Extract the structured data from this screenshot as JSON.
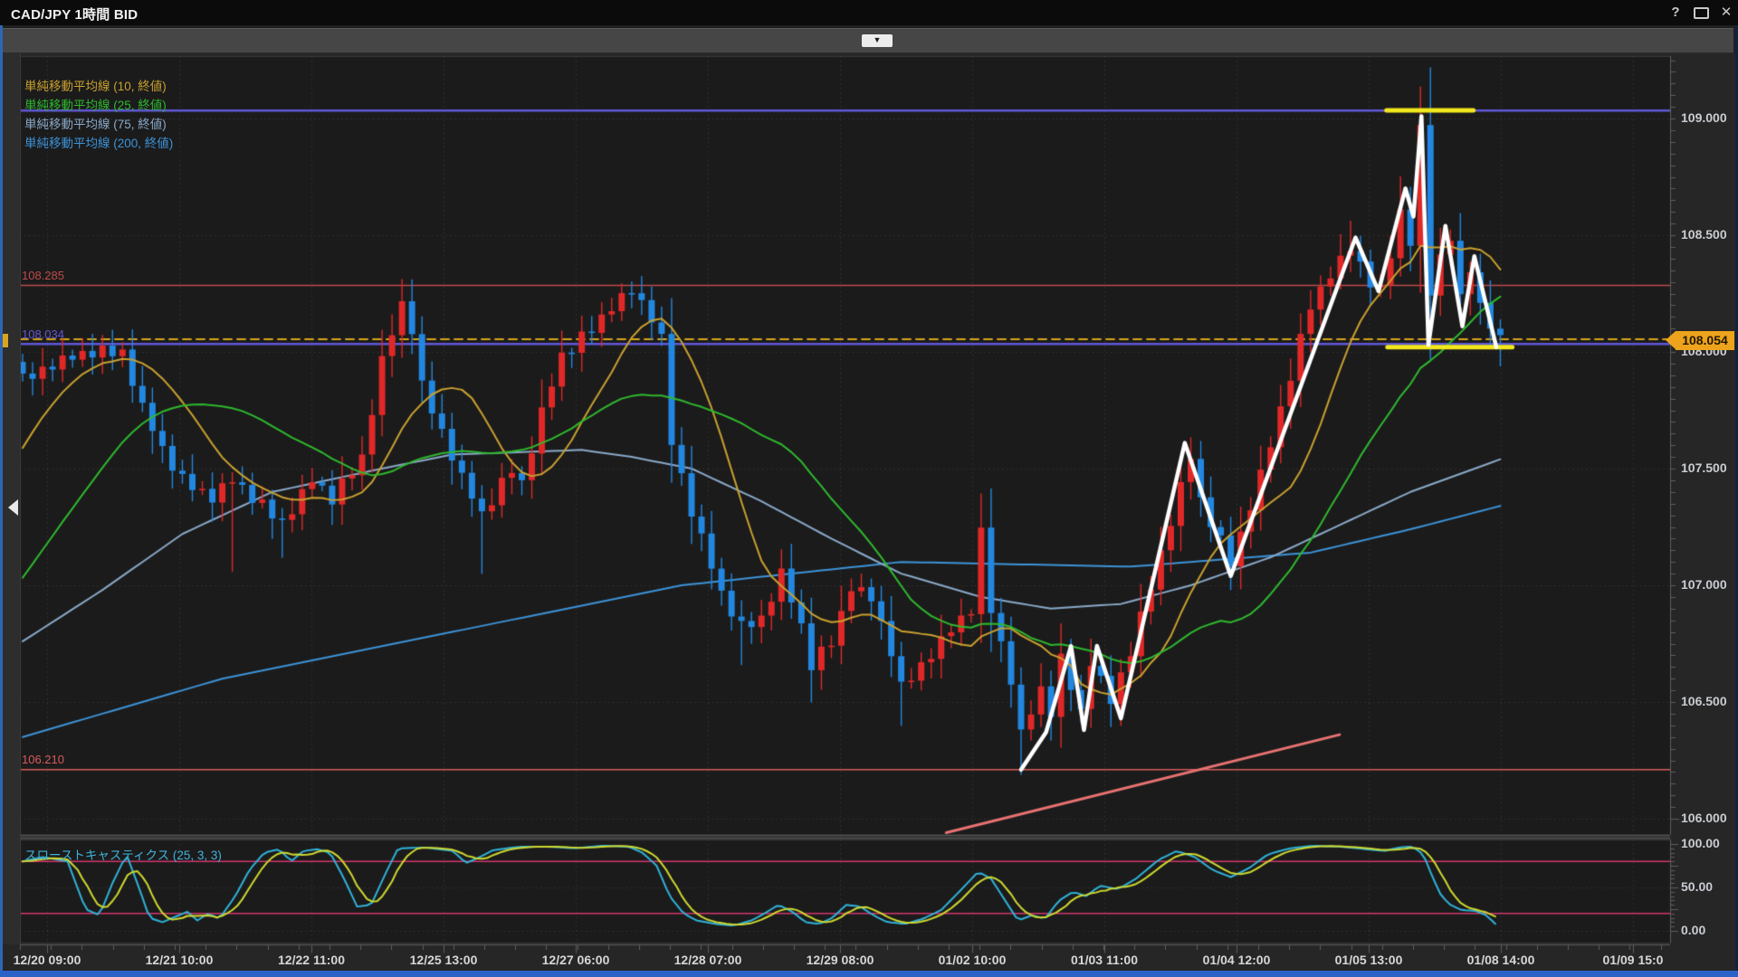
{
  "window": {
    "title": "CAD/JPY 1時間 BID",
    "controls": {
      "help": "?",
      "close": "✕"
    }
  },
  "toolbar": {
    "collapse_icon": "▼"
  },
  "chart_data": {
    "type": "candlestick",
    "title": "CAD/JPY 1時間 BID",
    "instrument": "CAD/JPY",
    "timeframe": "1時間",
    "quote_side": "BID",
    "up_color": "#e02828",
    "down_color": "#2287e0",
    "background": "#1b1b1b",
    "y_axis": {
      "tick_labels": [
        "109.000",
        "108.500",
        "108.000",
        "107.500",
        "107.000",
        "106.500",
        "106.000"
      ],
      "tick_values": [
        109.0,
        108.5,
        108.0,
        107.5,
        107.0,
        106.5,
        106.0
      ],
      "visible_range": [
        105.93,
        109.27
      ]
    },
    "x_labels": [
      "12/20 09:00",
      "12/21 10:00",
      "12/22 11:00",
      "12/25 13:00",
      "12/27 06:00",
      "12/28 07:00",
      "12/29 08:00",
      "01/02 10:00",
      "01/03 11:00",
      "01/04 12:00",
      "01/05 13:00",
      "01/08 14:00",
      "01/09 15:0"
    ],
    "price_path_keyframes": [
      [
        0,
        107.88
      ],
      [
        3,
        107.95
      ],
      [
        7,
        108.0
      ],
      [
        10,
        108.0
      ],
      [
        12,
        107.76
      ],
      [
        14,
        107.58
      ],
      [
        16,
        107.45
      ],
      [
        19,
        107.38
      ],
      [
        21,
        107.45
      ],
      [
        24,
        107.34
      ],
      [
        26,
        107.27
      ],
      [
        29,
        107.45
      ],
      [
        31,
        107.37
      ],
      [
        34,
        107.55
      ],
      [
        36,
        107.96
      ],
      [
        38,
        108.2
      ],
      [
        39,
        108.1
      ],
      [
        40,
        107.85
      ],
      [
        42,
        107.66
      ],
      [
        44,
        107.46
      ],
      [
        46,
        107.3
      ],
      [
        49,
        107.5
      ],
      [
        50,
        107.44
      ],
      [
        52,
        107.74
      ],
      [
        54,
        107.98
      ],
      [
        57,
        108.1
      ],
      [
        59,
        108.2
      ],
      [
        61,
        108.26
      ],
      [
        63,
        108.15
      ],
      [
        64,
        108.05
      ],
      [
        65,
        107.62
      ],
      [
        67,
        107.32
      ],
      [
        68,
        107.2
      ],
      [
        70,
        106.96
      ],
      [
        72,
        106.82
      ],
      [
        74,
        106.86
      ],
      [
        76,
        107.05
      ],
      [
        78,
        106.82
      ],
      [
        79,
        106.66
      ],
      [
        81,
        106.76
      ],
      [
        83,
        107.0
      ],
      [
        85,
        106.94
      ],
      [
        87,
        106.72
      ],
      [
        88,
        106.56
      ],
      [
        90,
        106.66
      ],
      [
        92,
        106.76
      ],
      [
        95,
        106.9
      ],
      [
        96,
        107.22
      ],
      [
        97,
        106.9
      ],
      [
        99,
        106.6
      ],
      [
        100,
        106.36
      ],
      [
        102,
        106.55
      ],
      [
        103,
        106.46
      ],
      [
        104,
        106.68
      ],
      [
        106,
        106.46
      ],
      [
        107,
        106.68
      ],
      [
        109,
        106.5
      ],
      [
        111,
        106.72
      ],
      [
        113,
        107.0
      ],
      [
        116,
        107.42
      ],
      [
        117,
        107.55
      ],
      [
        118,
        107.36
      ],
      [
        121,
        107.1
      ],
      [
        122,
        107.22
      ],
      [
        125,
        107.6
      ],
      [
        127,
        107.9
      ],
      [
        129,
        108.2
      ],
      [
        131,
        108.34
      ],
      [
        133,
        108.44
      ],
      [
        135,
        108.3
      ],
      [
        136,
        108.26
      ],
      [
        137,
        108.42
      ],
      [
        138,
        108.6
      ],
      [
        139,
        108.48
      ],
      [
        140,
        108.95
      ],
      [
        141,
        108.25
      ],
      [
        142,
        108.4
      ],
      [
        143,
        108.5
      ],
      [
        144,
        108.22
      ],
      [
        145,
        108.36
      ],
      [
        146,
        108.2
      ],
      [
        148,
        108.05
      ]
    ],
    "wick_events": [
      [
        10,
        "h",
        108.04
      ],
      [
        21,
        "l",
        107.06
      ],
      [
        26,
        "l",
        107.12
      ],
      [
        38,
        "h",
        108.31
      ],
      [
        46,
        "l",
        107.05
      ],
      [
        61,
        "h",
        108.3
      ],
      [
        72,
        "l",
        106.66
      ],
      [
        79,
        "l",
        106.5
      ],
      [
        88,
        "l",
        106.4
      ],
      [
        96,
        "h",
        107.32
      ],
      [
        100,
        "l",
        106.19
      ],
      [
        133,
        "h",
        108.56
      ],
      [
        138,
        "h",
        108.75
      ],
      [
        140,
        "h",
        109.02
      ],
      [
        141,
        "l",
        107.97
      ],
      [
        148,
        "l",
        107.94
      ]
    ],
    "overlays": [
      {
        "label": "単純移動平均線 (10, 終値)",
        "period": 10,
        "color": "#c9a02f",
        "computed": true
      },
      {
        "label": "単純移動平均線 (25, 終値)",
        "period": 25,
        "color": "#2eb82e",
        "computed": true
      },
      {
        "label": "単純移動平均線 (75, 終値)",
        "period": 75,
        "color": "#8aa9c9",
        "computed": false
      },
      {
        "label": "単純移動平均線 (200, 終値)",
        "period": 200,
        "color": "#3d93d8",
        "computed": false
      }
    ],
    "ma75_keyframes": [
      [
        0,
        106.76
      ],
      [
        8,
        106.98
      ],
      [
        16,
        107.22
      ],
      [
        25,
        107.4
      ],
      [
        36,
        107.5
      ],
      [
        43,
        107.56
      ],
      [
        56,
        107.58
      ],
      [
        61,
        107.55
      ],
      [
        67,
        107.5
      ],
      [
        74,
        107.36
      ],
      [
        81,
        107.2
      ],
      [
        88,
        107.05
      ],
      [
        96,
        106.95
      ],
      [
        103,
        106.9
      ],
      [
        110,
        106.92
      ],
      [
        117,
        107.0
      ],
      [
        125,
        107.12
      ],
      [
        132,
        107.26
      ],
      [
        139,
        107.4
      ],
      [
        148,
        107.54
      ]
    ],
    "ma200_keyframes": [
      [
        0,
        106.35
      ],
      [
        20,
        106.6
      ],
      [
        43,
        106.8
      ],
      [
        66,
        107.0
      ],
      [
        88,
        107.1
      ],
      [
        111,
        107.08
      ],
      [
        129,
        107.14
      ],
      [
        139,
        107.24
      ],
      [
        148,
        107.34
      ]
    ],
    "horizontal_lines": [
      {
        "label": "108.285",
        "value": 108.285,
        "color": "#bf4a4a",
        "style": "solid"
      },
      {
        "label": "108.034",
        "value": 108.034,
        "color": "#6157d8",
        "style": "solid"
      },
      {
        "label": "",
        "value": 109.034,
        "color": "#6157d8",
        "style": "solid"
      },
      {
        "label": "106.210",
        "value": 106.21,
        "color": "#d85b5b",
        "style": "solid"
      }
    ],
    "current_price": {
      "label": "108.054",
      "value": 108.054,
      "line_color": "#d9a51d",
      "tag_color": "#eda41c",
      "style": "dashed"
    },
    "trend_line": {
      "color": "#e87272",
      "points": [
        [
          92.5,
          105.94
        ],
        [
          131.9,
          106.36
        ]
      ]
    },
    "drawn_zigzag": {
      "color": "#ffffff",
      "points": [
        [
          100,
          106.21
        ],
        [
          102.5,
          106.37
        ],
        [
          105,
          106.74
        ],
        [
          106.3,
          106.38
        ],
        [
          107.6,
          106.74
        ],
        [
          110,
          106.43
        ],
        [
          116.4,
          107.61
        ],
        [
          121,
          107.04
        ],
        [
          133.5,
          108.49
        ],
        [
          135.8,
          108.26
        ],
        [
          138.5,
          108.7
        ],
        [
          139.3,
          108.58
        ],
        [
          140.1,
          109.01
        ],
        [
          140.8,
          108.03
        ],
        [
          142.5,
          108.54
        ],
        [
          144.2,
          108.11
        ],
        [
          145.4,
          108.41
        ],
        [
          147.6,
          108.02
        ]
      ]
    },
    "yellow_segments": [
      {
        "price": 109.035,
        "from_index": 136.6,
        "to_index": 145.3,
        "color": "#f2e71c"
      },
      {
        "price": 108.02,
        "from_index": 136.7,
        "to_index": 149.2,
        "color": "#f2e71c"
      }
    ],
    "stochastic": {
      "label": "スローストキャスティクス (25, 3, 3)",
      "params": [
        25,
        3,
        3
      ],
      "axis_labels": [
        "100.00",
        "50.00",
        "0.00"
      ],
      "axis_values": [
        100,
        50,
        0
      ],
      "levels": [
        80,
        20
      ],
      "level_color": "#d4356e",
      "k_color": "#2fb3d9",
      "d_color": "#cfd92f",
      "k_keyframes": [
        [
          0,
          80
        ],
        [
          2,
          85
        ],
        [
          4.5,
          80
        ],
        [
          6.3,
          25
        ],
        [
          7.7,
          18
        ],
        [
          9,
          55
        ],
        [
          10.4,
          88
        ],
        [
          11.8,
          45
        ],
        [
          12.7,
          15
        ],
        [
          14,
          10
        ],
        [
          16.5,
          22
        ],
        [
          17.5,
          12
        ],
        [
          18.6,
          20
        ],
        [
          19.7,
          14
        ],
        [
          21.3,
          40
        ],
        [
          22.7,
          70
        ],
        [
          24.2,
          90
        ],
        [
          25.7,
          94
        ],
        [
          26.9,
          80
        ],
        [
          28.1,
          92
        ],
        [
          29.5,
          94
        ],
        [
          30.8,
          90
        ],
        [
          32.2,
          60
        ],
        [
          33.5,
          28
        ],
        [
          34.9,
          30
        ],
        [
          36.3,
          65
        ],
        [
          37.6,
          95
        ],
        [
          40.3,
          96
        ],
        [
          43.1,
          92
        ],
        [
          44.4,
          78
        ],
        [
          45.8,
          85
        ],
        [
          47.1,
          93
        ],
        [
          49.9,
          97
        ],
        [
          52.6,
          97
        ],
        [
          55.3,
          95
        ],
        [
          58,
          98
        ],
        [
          60.7,
          97
        ],
        [
          62.1,
          90
        ],
        [
          63.5,
          75
        ],
        [
          64.8,
          40
        ],
        [
          66.2,
          20
        ],
        [
          67.5,
          12
        ],
        [
          69.4,
          8
        ],
        [
          71.2,
          6
        ],
        [
          73,
          12
        ],
        [
          74.3,
          20
        ],
        [
          75.7,
          30
        ],
        [
          77.1,
          22
        ],
        [
          78.4,
          10
        ],
        [
          79.8,
          8
        ],
        [
          81.1,
          15
        ],
        [
          82.5,
          30
        ],
        [
          83.9,
          28
        ],
        [
          85.2,
          18
        ],
        [
          86.6,
          10
        ],
        [
          88.4,
          8
        ],
        [
          90.2,
          14
        ],
        [
          92,
          24
        ],
        [
          93.8,
          45
        ],
        [
          95.7,
          68
        ],
        [
          97,
          60
        ],
        [
          98.4,
          35
        ],
        [
          99.7,
          12
        ],
        [
          101.1,
          18
        ],
        [
          102.4,
          14
        ],
        [
          103.8,
          35
        ],
        [
          105.2,
          45
        ],
        [
          106.5,
          40
        ],
        [
          107.9,
          52
        ],
        [
          109.7,
          48
        ],
        [
          111.5,
          60
        ],
        [
          113.8,
          82
        ],
        [
          115.6,
          92
        ],
        [
          117.4,
          85
        ],
        [
          119.2,
          70
        ],
        [
          121,
          62
        ],
        [
          122.8,
          72
        ],
        [
          124.7,
          88
        ],
        [
          126.9,
          95
        ],
        [
          129.2,
          98
        ],
        [
          131.9,
          97
        ],
        [
          134.6,
          94
        ],
        [
          136.4,
          92
        ],
        [
          137.8,
          96
        ],
        [
          139.2,
          97
        ],
        [
          140.3,
          88
        ],
        [
          141.2,
          62
        ],
        [
          142.1,
          40
        ],
        [
          143,
          30
        ],
        [
          144.1,
          24
        ],
        [
          145.5,
          23
        ],
        [
          146.6,
          18
        ],
        [
          147.5,
          8
        ]
      ]
    }
  }
}
